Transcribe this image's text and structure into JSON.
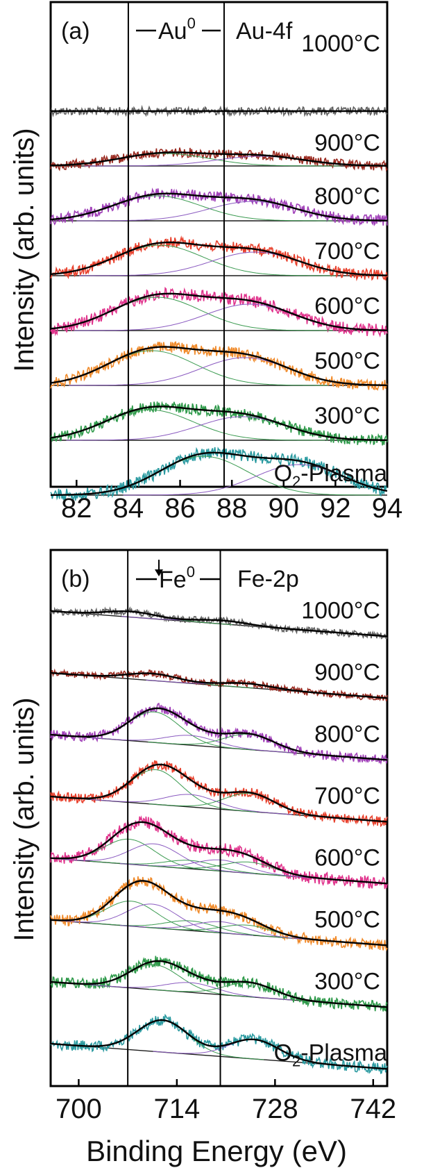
{
  "chart_data": [
    {
      "panel": "(a)",
      "type": "line",
      "title": "Au-4f",
      "annotation": "Au",
      "annotation_sup": "0",
      "ylabel": "Intensity (arb. units)",
      "xlim": [
        81,
        94
      ],
      "xticks": [
        82,
        84,
        86,
        88,
        90,
        92,
        94
      ],
      "tick_labels": [
        "82",
        "84",
        "86",
        "88",
        "90",
        "92",
        "94"
      ],
      "vlines": [
        84.0,
        87.7
      ],
      "series": [
        {
          "name": "1000°C",
          "color": "#606060",
          "peaks": [],
          "amp": [],
          "noise": 6
        },
        {
          "name": "900°C",
          "color": "#9a2a20",
          "peaks": [
            85.4,
            89.1
          ],
          "amp": [
            18,
            14
          ],
          "noise": 7
        },
        {
          "name": "800°C",
          "color": "#a040b8",
          "peaks": [
            85.1,
            88.8
          ],
          "amp": [
            36,
            28
          ],
          "noise": 8
        },
        {
          "name": "700°C",
          "color": "#e8402c",
          "peaks": [
            85.2,
            88.9
          ],
          "amp": [
            44,
            34
          ],
          "noise": 8
        },
        {
          "name": "600°C",
          "color": "#e0338c",
          "peaks": [
            85.1,
            88.7
          ],
          "amp": [
            48,
            38
          ],
          "noise": 9
        },
        {
          "name": "500°C",
          "color": "#f08a2a",
          "peaks": [
            84.9,
            88.5
          ],
          "amp": [
            50,
            40
          ],
          "noise": 8
        },
        {
          "name": "300°C",
          "color": "#2e9a4a",
          "peaks": [
            84.8,
            88.4
          ],
          "amp": [
            44,
            34
          ],
          "noise": 8
        },
        {
          "name": "O2-Plasma",
          "label": "O",
          "label_sub": "2",
          "label_rest": "-Plasma",
          "color": "#2a9aa0",
          "peaks": [
            86.9,
            90.6
          ],
          "amp": [
            56,
            44
          ],
          "noise": 9
        }
      ]
    },
    {
      "panel": "(b)",
      "type": "line",
      "title": "Fe-2p",
      "annotation": "Fe",
      "annotation_sup": "0",
      "ylabel": "Intensity (arb. units)",
      "xlabel": "Binding Energy (eV)",
      "xlim": [
        696,
        744
      ],
      "xticks": [
        700,
        714,
        728,
        742
      ],
      "tick_labels": [
        "700",
        "714",
        "728",
        "742"
      ],
      "vlines": [
        707.0,
        720.2
      ],
      "series": [
        {
          "name": "1000°C",
          "color": "#606060",
          "peaks": [
            707.5,
            720.5
          ],
          "amp": [
            8,
            5
          ],
          "noise": 5
        },
        {
          "name": "900°C",
          "color": "#9a2a20",
          "peaks": [
            710.5,
            724.0
          ],
          "amp": [
            10,
            6
          ],
          "noise": 5
        },
        {
          "name": "800°C",
          "color": "#a040b8",
          "peaks": [
            710.8,
            716.0,
            724.3
          ],
          "amp": [
            44,
            14,
            22
          ],
          "noise": 7
        },
        {
          "name": "700°C",
          "color": "#e8402c",
          "peaks": [
            711.0,
            716.0,
            724.4
          ],
          "amp": [
            50,
            18,
            26
          ],
          "noise": 7
        },
        {
          "name": "600°C",
          "color": "#e0338c",
          "peaks": [
            707.2,
            710.8,
            716.0,
            720.3,
            724.3
          ],
          "amp": [
            36,
            32,
            12,
            16,
            16
          ],
          "noise": 9
        },
        {
          "name": "500°C",
          "color": "#f08a2a",
          "peaks": [
            707.5,
            710.5,
            716.0,
            720.3,
            724.0
          ],
          "amp": [
            36,
            34,
            14,
            16,
            14
          ],
          "noise": 8
        },
        {
          "name": "300°C",
          "color": "#2e9a4a",
          "peaks": [
            710.8,
            716.0,
            724.4
          ],
          "amp": [
            36,
            14,
            20
          ],
          "noise": 8
        },
        {
          "name": "O2-Plasma",
          "label": "O",
          "label_sub": "2",
          "label_rest": "-Plasma",
          "color": "#2a9aa0",
          "peaks": [
            712.0,
            725.0
          ],
          "amp": [
            46,
            28
          ],
          "noise": 8
        }
      ]
    }
  ]
}
